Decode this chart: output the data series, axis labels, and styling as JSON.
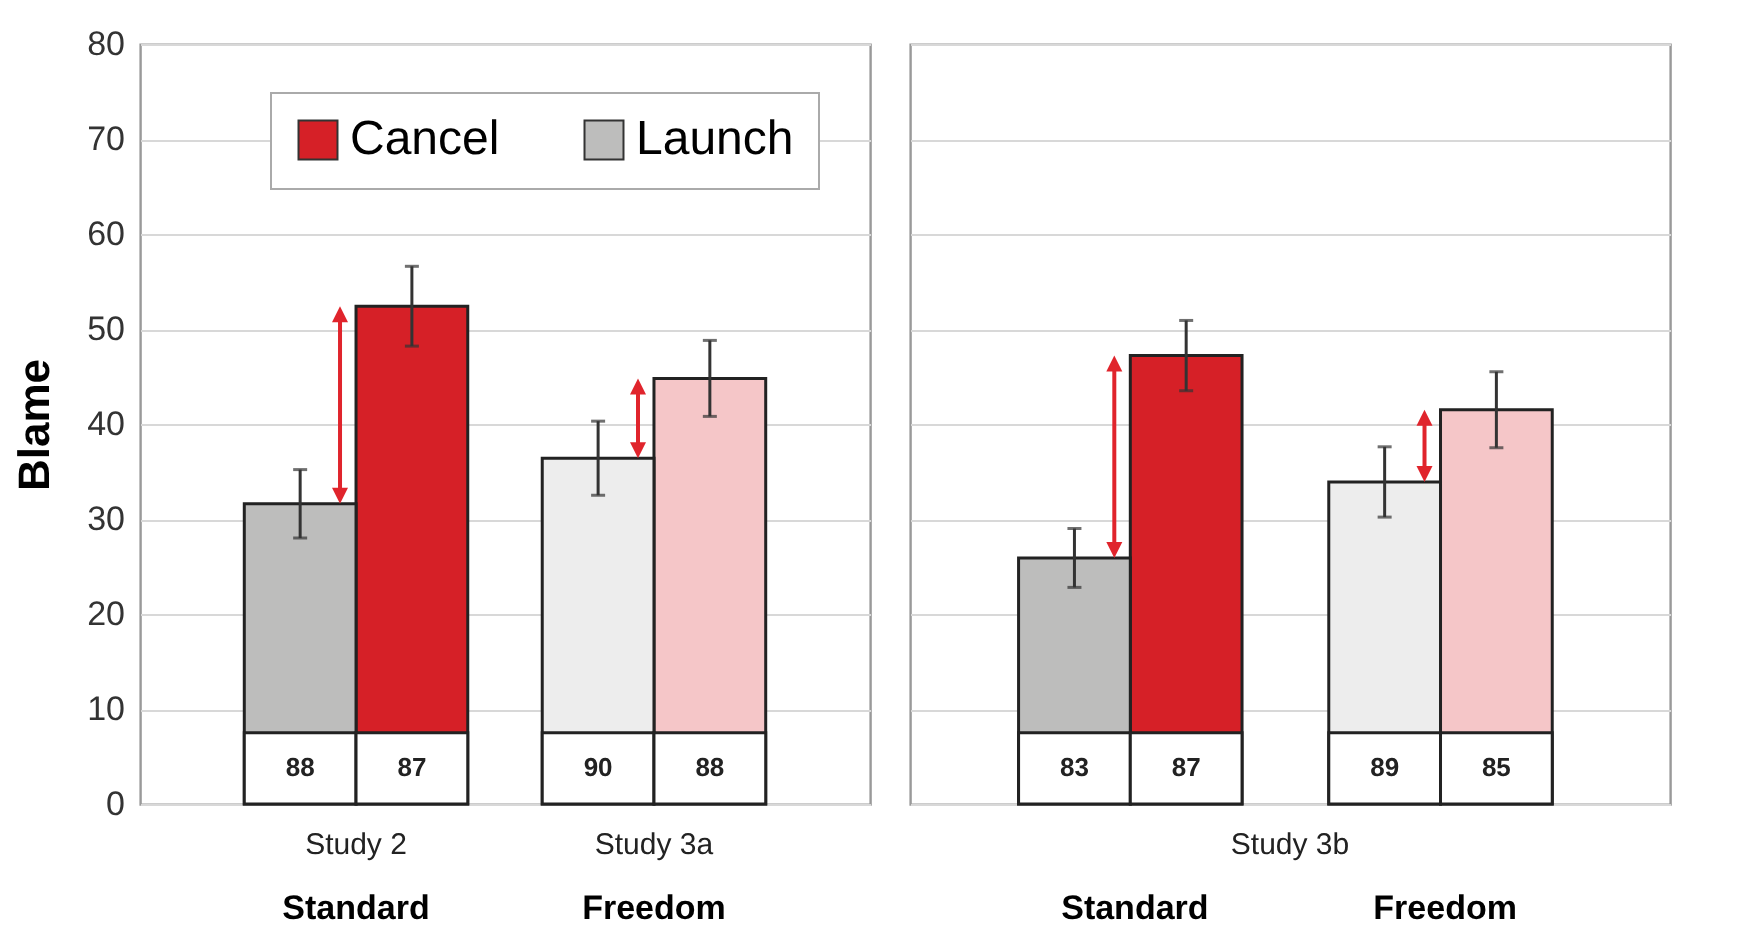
{
  "chart_data": [
    {
      "type": "bar",
      "categories": [
        "Standard",
        "Freedom"
      ],
      "ylabel": "Blame",
      "ylim": [
        0,
        80
      ],
      "yticks": [
        0,
        10,
        20,
        30,
        40,
        50,
        60,
        70,
        80
      ],
      "grid": "y",
      "legend": "top",
      "series": [
        {
          "name": "Cancel",
          "color": "#d62027",
          "colors": [
            "#d62027",
            "#f5c6c8"
          ],
          "values": [
            52.4,
            44.8
          ],
          "errors": [
            4.2,
            4.0
          ]
        },
        {
          "name": "Launch",
          "color": "#bdbdbc",
          "colors": [
            "#bdbdbc",
            "#ededed"
          ],
          "values": [
            31.6,
            36.4
          ],
          "errors": [
            3.6,
            3.9
          ]
        }
      ],
      "annotations": [
        "Study 2",
        "Study 3a",
        {
          "text": "88",
          "x": "Standard",
          "y": 7.5
        },
        {
          "text": "87",
          "x": "Standard",
          "y": 7.5
        },
        {
          "text": "90",
          "x": "Freedom",
          "y": 7.5
        },
        {
          "text": "88",
          "x": "Freedom",
          "y": 7.5
        }
      ]
    },
    {
      "type": "bar",
      "categories": [
        "Standard",
        "Freedom"
      ],
      "xlabel": "Study 3b",
      "ylim": [
        0,
        80
      ],
      "yticks": [
        0,
        10,
        20,
        30,
        40,
        50,
        60,
        70,
        80
      ],
      "grid": "y",
      "tick_labels": "x",
      "series": [
        {
          "color": "#d62027",
          "colors": [
            "#d62027",
            "#f5c6c8"
          ],
          "values": [
            47.2,
            41.5
          ],
          "errors": [
            3.7,
            4.0
          ]
        },
        {
          "color": "#bdbdbc",
          "colors": [
            "#bdbdbc",
            "#ededed"
          ],
          "values": [
            25.9,
            33.9
          ],
          "errors": [
            3.1,
            3.7
          ]
        }
      ],
      "annotations": [
        {
          "text": "83",
          "x": "Standard",
          "y": 7.5
        },
        {
          "text": "87",
          "x": "Standard",
          "y": 7.5
        },
        {
          "text": "89",
          "x": "Freedom",
          "y": 7.5
        },
        {
          "text": "85",
          "x": "Freedom",
          "y": 7.5
        }
      ]
    }
  ]
}
